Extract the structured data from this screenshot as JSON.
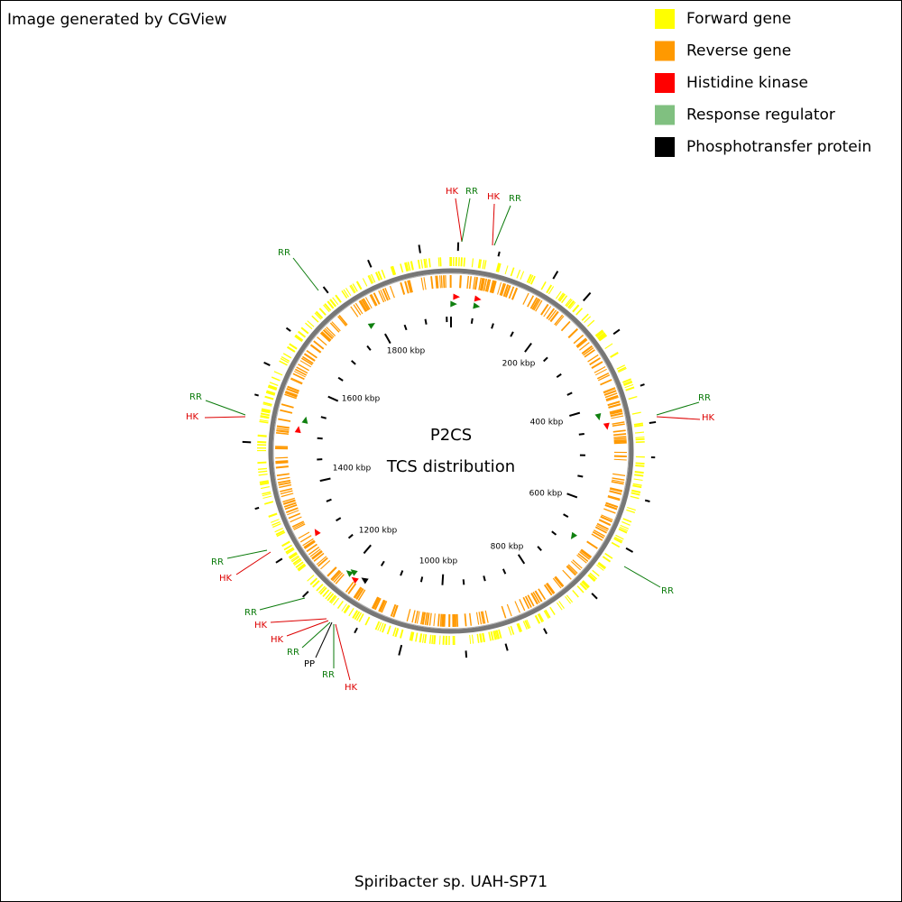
{
  "header": {
    "text": "Image generated by CGView"
  },
  "legend": [
    {
      "label": "Forward gene",
      "color": "#ffff00"
    },
    {
      "label": "Reverse gene",
      "color": "#ff9900"
    },
    {
      "label": "Histidine kinase",
      "color": "#ff0000"
    },
    {
      "label": "Response regulator",
      "color": "#80c080"
    },
    {
      "label": "Phosphotransfer protein",
      "color": "#000000"
    }
  ],
  "center": {
    "title": "P2CS",
    "subtitle": "TCS distribution"
  },
  "caption": "Spiribacter sp. UAH-SP71",
  "ruler": [
    "200 kbp",
    "400 kbp",
    "600 kbp",
    "800 kbp",
    "1000 kbp",
    "1200 kbp",
    "1400 kbp",
    "1600 kbp",
    "1800 kbp"
  ],
  "features": [
    {
      "label": "HK",
      "color": "#dd0000"
    },
    {
      "label": "RR",
      "color": "#0a7a0a"
    },
    {
      "label": "HK",
      "color": "#dd0000"
    },
    {
      "label": "RR",
      "color": "#0a7a0a"
    },
    {
      "label": "RR",
      "color": "#0a7a0a"
    },
    {
      "label": "RR",
      "color": "#0a7a0a"
    },
    {
      "label": "HK",
      "color": "#dd0000"
    },
    {
      "label": "RR",
      "color": "#0a7a0a"
    },
    {
      "label": "HK",
      "color": "#dd0000"
    },
    {
      "label": "RR",
      "color": "#0a7a0a"
    },
    {
      "label": "RR",
      "color": "#0a7a0a"
    },
    {
      "label": "HK",
      "color": "#dd0000"
    },
    {
      "label": "RR",
      "color": "#0a7a0a"
    },
    {
      "label": "HK",
      "color": "#dd0000"
    },
    {
      "label": "HK",
      "color": "#dd0000"
    },
    {
      "label": "RR",
      "color": "#0a7a0a"
    },
    {
      "label": "PP",
      "color": "#000000"
    },
    {
      "label": "RR",
      "color": "#0a7a0a"
    },
    {
      "label": "HK",
      "color": "#dd0000"
    }
  ]
}
